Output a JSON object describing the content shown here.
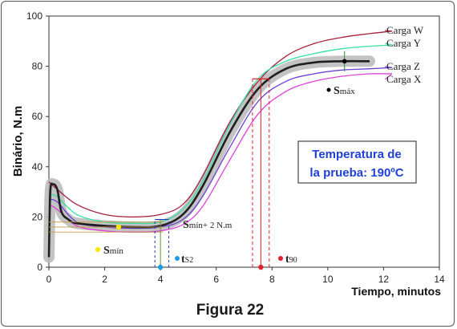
{
  "figure_caption": "Figura 22",
  "annotation_box": {
    "line1": "Temperatura de",
    "line2": "la prueba: 190ºC"
  },
  "markers": {
    "smin": {
      "label_bold": "S",
      "label_rest": "mín",
      "color": "#ffe600"
    },
    "smin2": {
      "label_bold": "S",
      "label_rest": "mín+ 2 N.m"
    },
    "smax": {
      "label_bold": "S",
      "label_rest": "máx",
      "color": "#000000"
    },
    "ts2": {
      "label_bold": "t",
      "label_rest": "S2",
      "color": "#1e9de0"
    },
    "t90": {
      "label_bold": "t",
      "label_rest": "90",
      "color": "#e0202a"
    }
  },
  "chart_data": {
    "type": "line",
    "xlabel": "Tiempo, minutos",
    "ylabel": "Binário, N.m",
    "xlim": [
      0,
      14
    ],
    "ylim": [
      0,
      100
    ],
    "xticks": [
      0,
      2,
      4,
      6,
      8,
      10,
      12,
      14
    ],
    "yticks": [
      0,
      20,
      40,
      60,
      80,
      100
    ],
    "series": [
      {
        "name": "Carga W",
        "color": "#a8203c",
        "points": [
          [
            0,
            34
          ],
          [
            0.3,
            31
          ],
          [
            1,
            25
          ],
          [
            2,
            21
          ],
          [
            3,
            20
          ],
          [
            4,
            21
          ],
          [
            4.8,
            25
          ],
          [
            5.5,
            36
          ],
          [
            6.5,
            58
          ],
          [
            7.5,
            74
          ],
          [
            8.5,
            84
          ],
          [
            9.5,
            89
          ],
          [
            10.5,
            91.5
          ],
          [
            11.5,
            93
          ],
          [
            12.3,
            94
          ]
        ]
      },
      {
        "name": "Carga Y",
        "color": "#35e0a0",
        "points": [
          [
            0,
            29
          ],
          [
            0.3,
            28
          ],
          [
            1,
            21
          ],
          [
            2,
            18
          ],
          [
            3,
            17.5
          ],
          [
            4,
            18
          ],
          [
            4.8,
            23
          ],
          [
            5.5,
            34
          ],
          [
            6.5,
            57
          ],
          [
            7.5,
            75
          ],
          [
            8.5,
            82
          ],
          [
            9.5,
            85
          ],
          [
            10.5,
            87
          ],
          [
            11.5,
            88
          ],
          [
            12.3,
            88.5
          ]
        ]
      },
      {
        "name": "Carga Z",
        "color": "#6b3fd6",
        "points": [
          [
            0,
            27
          ],
          [
            0.3,
            26
          ],
          [
            1,
            18
          ],
          [
            2,
            16
          ],
          [
            3,
            15.5
          ],
          [
            4,
            16
          ],
          [
            4.8,
            19
          ],
          [
            5.5,
            28
          ],
          [
            6.5,
            48
          ],
          [
            7.5,
            66
          ],
          [
            8.5,
            74
          ],
          [
            9.5,
            77
          ],
          [
            10.5,
            78.5
          ],
          [
            11.5,
            79
          ],
          [
            12.3,
            79.5
          ]
        ]
      },
      {
        "name": "Carga X",
        "color": "#e040d8",
        "points": [
          [
            0,
            25
          ],
          [
            0.3,
            23
          ],
          [
            1,
            16.5
          ],
          [
            2,
            14.5
          ],
          [
            3,
            14
          ],
          [
            4,
            14.5
          ],
          [
            4.8,
            17
          ],
          [
            5.5,
            24
          ],
          [
            6.5,
            43
          ],
          [
            7.5,
            61
          ],
          [
            8.5,
            70
          ],
          [
            9.5,
            74
          ],
          [
            10.5,
            76
          ],
          [
            11.5,
            77
          ],
          [
            12.3,
            77
          ]
        ]
      },
      {
        "name": "",
        "color": "#1f1f1f",
        "width": 2.6,
        "band": 4,
        "points": [
          [
            0,
            4
          ],
          [
            0.05,
            30
          ],
          [
            0.15,
            33
          ],
          [
            0.3,
            31
          ],
          [
            0.45,
            22
          ],
          [
            0.7,
            19
          ],
          [
            1,
            17.5
          ],
          [
            2,
            16.5
          ],
          [
            3,
            16
          ],
          [
            4,
            16.5
          ],
          [
            4.8,
            21
          ],
          [
            5.5,
            32
          ],
          [
            6.5,
            54
          ],
          [
            7.5,
            71
          ],
          [
            8.5,
            79
          ],
          [
            9.5,
            81.5
          ],
          [
            10.5,
            82
          ],
          [
            11.5,
            82
          ]
        ]
      }
    ],
    "points": {
      "smin": {
        "x": 2.5,
        "y": 16
      },
      "smax": {
        "x": 10.6,
        "y": 82
      },
      "ts2": {
        "x": 4.0,
        "y": 0
      },
      "t90": {
        "x": 7.6,
        "y": 0
      }
    },
    "grid": false,
    "legend": "right"
  }
}
